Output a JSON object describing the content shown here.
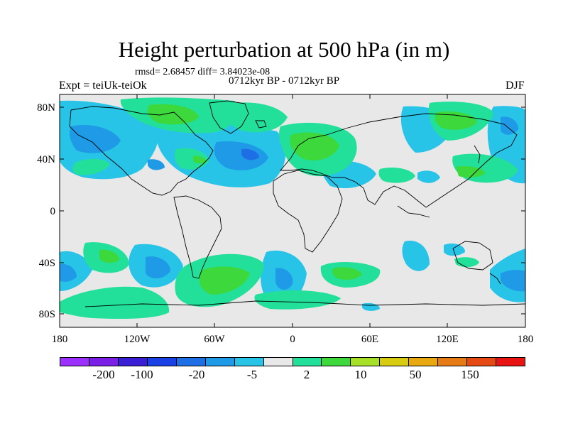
{
  "title": "Height perturbation at 500 hPa (in m)",
  "stats": "rmsd= 2.68457 diff= 3.84023e-08",
  "period": "0712kyr BP - 0712kyr BP",
  "experiment": "Expt = teiUk-teiOk",
  "season": "DJF",
  "lat_labels": [
    "80N",
    "40N",
    "0",
    "40S",
    "80S"
  ],
  "lon_labels": [
    "180",
    "120W",
    "60W",
    "0",
    "60E",
    "120E",
    "180"
  ],
  "colorbar": {
    "colors": [
      "#9b30ff",
      "#7a1fe6",
      "#3a1fd6",
      "#1a40e6",
      "#1e6fe6",
      "#1f9ae6",
      "#27c4e8",
      "#e8e8e8",
      "#22e09a",
      "#3cd83c",
      "#a6e028",
      "#d8cc10",
      "#e8a810",
      "#e67a14",
      "#e64a14",
      "#e81414"
    ],
    "labels": [
      "-200",
      "-100",
      "-20",
      "-5",
      "2",
      "10",
      "50",
      "150"
    ]
  },
  "legend_colors": {
    "blue_light": "#27c4e8",
    "blue_mid": "#1f9ae6",
    "blue_dark": "#1e6fe6",
    "green_light": "#22e09a",
    "green_mid": "#3cd83c",
    "neutral": "#e8e8e8"
  }
}
